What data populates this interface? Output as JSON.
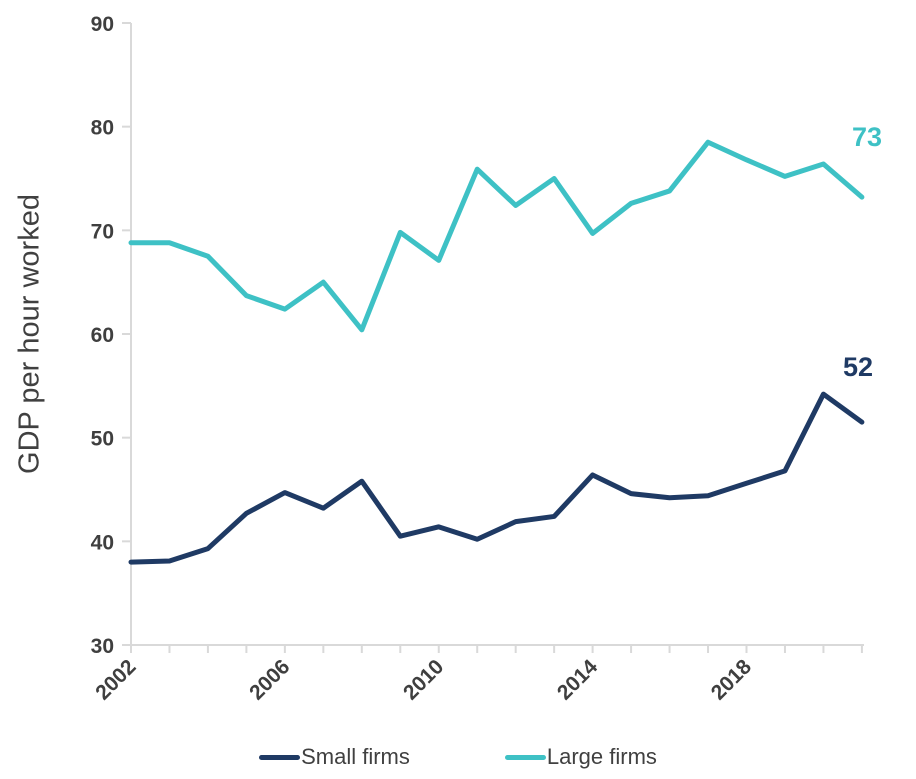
{
  "chart": {
    "colors": {
      "small_firms": "#1f3a64",
      "large_firms": "#3ec1c5",
      "axis": "#d9d9d9",
      "tick_text": "#3f3f3f",
      "title_text": "#404040"
    }
  },
  "chart_data": {
    "type": "line",
    "title": "",
    "xlabel": "",
    "ylabel": "GDP per hour worked",
    "ylim": [
      30,
      90
    ],
    "yticks": [
      30,
      40,
      50,
      60,
      70,
      80,
      90
    ],
    "x": [
      2002,
      2003,
      2004,
      2005,
      2006,
      2007,
      2008,
      2009,
      2010,
      2011,
      2012,
      2013,
      2014,
      2015,
      2016,
      2017,
      2018,
      2019,
      2020,
      2021
    ],
    "xtick_labels": [
      2002,
      2006,
      2010,
      2014,
      2018
    ],
    "grid": false,
    "legend_position": "bottom",
    "series": [
      {
        "name": "Small firms",
        "color": "#1f3a64",
        "values": [
          38.0,
          38.1,
          39.3,
          42.7,
          44.7,
          43.2,
          45.8,
          40.5,
          41.4,
          40.2,
          41.9,
          42.4,
          46.4,
          44.6,
          44.2,
          44.4,
          45.6,
          46.8,
          54.2,
          51.5
        ]
      },
      {
        "name": "Large firms",
        "color": "#3ec1c5",
        "values": [
          68.8,
          68.8,
          67.5,
          63.7,
          62.4,
          65.0,
          60.4,
          69.8,
          67.1,
          75.9,
          72.4,
          75.0,
          69.7,
          72.6,
          73.8,
          78.5,
          76.8,
          75.2,
          76.4,
          73.2
        ]
      }
    ],
    "end_labels": {
      "small_firms": "52",
      "large_firms": "73"
    }
  }
}
